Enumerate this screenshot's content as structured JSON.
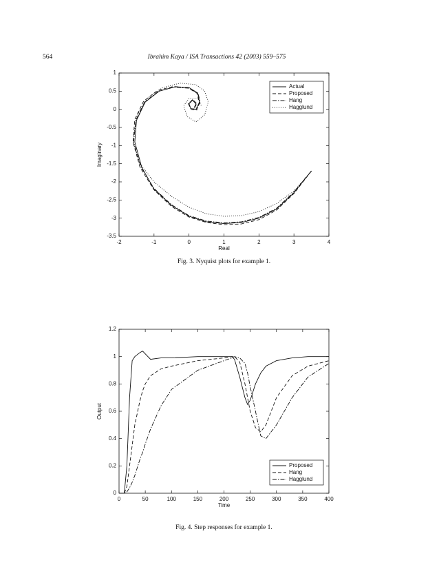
{
  "header": {
    "page_number": "564",
    "running_title": "Ibrahim Kaya / ISA Transactions 42 (2003) 559–575"
  },
  "chart_data": [
    {
      "type": "line",
      "xlabel": "Real",
      "ylabel": "Imaginary",
      "caption": "Fig. 3. Nyquist plots for example 1.",
      "xlim": [
        -2,
        4
      ],
      "ylim": [
        -3.5,
        1
      ],
      "xticks": [
        -2,
        -1,
        0,
        1,
        2,
        3,
        4
      ],
      "yticks": [
        -3.5,
        -3,
        -2.5,
        -2,
        -1.5,
        -1,
        -0.5,
        0,
        0.5,
        1
      ],
      "legend": "upper right",
      "series": [
        {
          "name": "Actual",
          "color": "#111111",
          "dash": "solid",
          "x": [
            3.5,
            3.0,
            2.5,
            2.0,
            1.5,
            1.0,
            0.5,
            0.0,
            -0.5,
            -1.0,
            -1.35,
            -1.55,
            -1.5,
            -1.25,
            -0.85,
            -0.4,
            0.0,
            0.25,
            0.3,
            0.2,
            0.05,
            0.0,
            0.1,
            0.2,
            0.15
          ],
          "values": [
            -1.7,
            -2.3,
            -2.75,
            -3.0,
            -3.12,
            -3.15,
            -3.1,
            -2.95,
            -2.65,
            -2.2,
            -1.6,
            -0.9,
            -0.3,
            0.2,
            0.5,
            0.62,
            0.6,
            0.45,
            0.2,
            0.0,
            0.02,
            0.15,
            0.25,
            0.15,
            0.05
          ]
        },
        {
          "name": "Proposed",
          "color": "#111111",
          "dash": "dashed",
          "x": [
            3.5,
            3.0,
            2.5,
            2.0,
            1.5,
            1.0,
            0.5,
            0.0,
            -0.5,
            -1.0,
            -1.4,
            -1.6,
            -1.55,
            -1.3,
            -0.9,
            -0.45,
            -0.05,
            0.22,
            0.3,
            0.22,
            0.06,
            0.0,
            0.1,
            0.22,
            0.16
          ],
          "values": [
            -1.7,
            -2.32,
            -2.78,
            -3.04,
            -3.16,
            -3.18,
            -3.12,
            -2.97,
            -2.68,
            -2.22,
            -1.6,
            -0.9,
            -0.28,
            0.22,
            0.52,
            0.63,
            0.6,
            0.45,
            0.2,
            -0.02,
            0.0,
            0.15,
            0.27,
            0.16,
            0.04
          ]
        },
        {
          "name": "Hang",
          "color": "#111111",
          "dash": "dashdot",
          "x": [
            3.5,
            3.0,
            2.5,
            2.0,
            1.5,
            1.0,
            0.5,
            0.0,
            -0.5,
            -1.0,
            -1.38,
            -1.58,
            -1.52,
            -1.27,
            -0.87,
            -0.42,
            0.0,
            0.26,
            0.32,
            0.22,
            0.05,
            -0.02,
            0.1,
            0.22,
            0.16
          ],
          "values": [
            -1.7,
            -2.28,
            -2.73,
            -2.98,
            -3.1,
            -3.13,
            -3.08,
            -2.93,
            -2.63,
            -2.18,
            -1.58,
            -0.9,
            -0.3,
            0.2,
            0.5,
            0.61,
            0.58,
            0.44,
            0.2,
            0.0,
            0.02,
            0.16,
            0.26,
            0.15,
            0.05
          ]
        },
        {
          "name": "Hagglund",
          "color": "#111111",
          "dash": "dotted",
          "x": [
            3.5,
            3.0,
            2.5,
            2.0,
            1.5,
            1.0,
            0.5,
            0.0,
            -0.5,
            -1.0,
            -1.4,
            -1.6,
            -1.5,
            -1.2,
            -0.75,
            -0.25,
            0.2,
            0.45,
            0.55,
            0.45,
            0.2,
            -0.05,
            -0.15,
            0.0,
            0.25,
            0.35
          ],
          "values": [
            -1.7,
            -2.25,
            -2.6,
            -2.82,
            -2.93,
            -2.95,
            -2.88,
            -2.7,
            -2.4,
            -2.0,
            -1.5,
            -0.9,
            -0.2,
            0.3,
            0.6,
            0.72,
            0.68,
            0.5,
            0.2,
            -0.15,
            -0.35,
            -0.2,
            0.1,
            0.3,
            0.3,
            0.1
          ]
        }
      ]
    },
    {
      "type": "line",
      "xlabel": "Time",
      "ylabel": "Output",
      "caption": "Fig. 4. Step responses for example 1.",
      "xlim": [
        0,
        400
      ],
      "ylim": [
        0,
        1.2
      ],
      "xticks": [
        0,
        50,
        100,
        150,
        200,
        250,
        300,
        350,
        400
      ],
      "yticks": [
        0,
        0.2,
        0.4,
        0.6,
        0.8,
        1,
        1.2
      ],
      "legend": "lower right",
      "series": [
        {
          "name": "Proposed",
          "color": "#111111",
          "dash": "solid",
          "x": [
            0,
            10,
            15,
            20,
            25,
            30,
            40,
            45,
            50,
            60,
            80,
            100,
            150,
            200,
            215,
            220,
            230,
            240,
            245,
            250,
            260,
            270,
            280,
            300,
            330,
            360,
            400
          ],
          "values": [
            0,
            0,
            0.2,
            0.7,
            0.97,
            1.0,
            1.03,
            1.04,
            1.02,
            0.98,
            0.99,
            0.99,
            1.0,
            1.0,
            1.0,
            0.98,
            0.85,
            0.7,
            0.65,
            0.68,
            0.8,
            0.88,
            0.93,
            0.97,
            0.99,
            1.0,
            1.0
          ]
        },
        {
          "name": "Hang",
          "color": "#111111",
          "dash": "dashed",
          "x": [
            0,
            10,
            15,
            20,
            25,
            30,
            40,
            45,
            50,
            60,
            80,
            100,
            150,
            200,
            215,
            220,
            230,
            240,
            245,
            250,
            260,
            270,
            280,
            300,
            330,
            360,
            400
          ],
          "values": [
            0,
            0,
            0.05,
            0.2,
            0.35,
            0.5,
            0.68,
            0.75,
            0.8,
            0.86,
            0.91,
            0.93,
            0.97,
            0.99,
            1.0,
            1.0,
            0.96,
            0.8,
            0.7,
            0.6,
            0.48,
            0.45,
            0.5,
            0.7,
            0.86,
            0.93,
            0.97
          ]
        },
        {
          "name": "Hagglund",
          "color": "#111111",
          "dash": "dashdot",
          "x": [
            0,
            10,
            15,
            20,
            25,
            30,
            40,
            45,
            50,
            60,
            80,
            100,
            150,
            200,
            215,
            220,
            230,
            240,
            245,
            250,
            260,
            270,
            280,
            300,
            330,
            360,
            400
          ],
          "values": [
            0,
            0,
            0.01,
            0.04,
            0.08,
            0.13,
            0.25,
            0.3,
            0.36,
            0.47,
            0.64,
            0.76,
            0.9,
            0.97,
            0.99,
            1.0,
            0.99,
            0.95,
            0.88,
            0.78,
            0.6,
            0.42,
            0.4,
            0.5,
            0.7,
            0.85,
            0.95
          ]
        }
      ]
    }
  ]
}
